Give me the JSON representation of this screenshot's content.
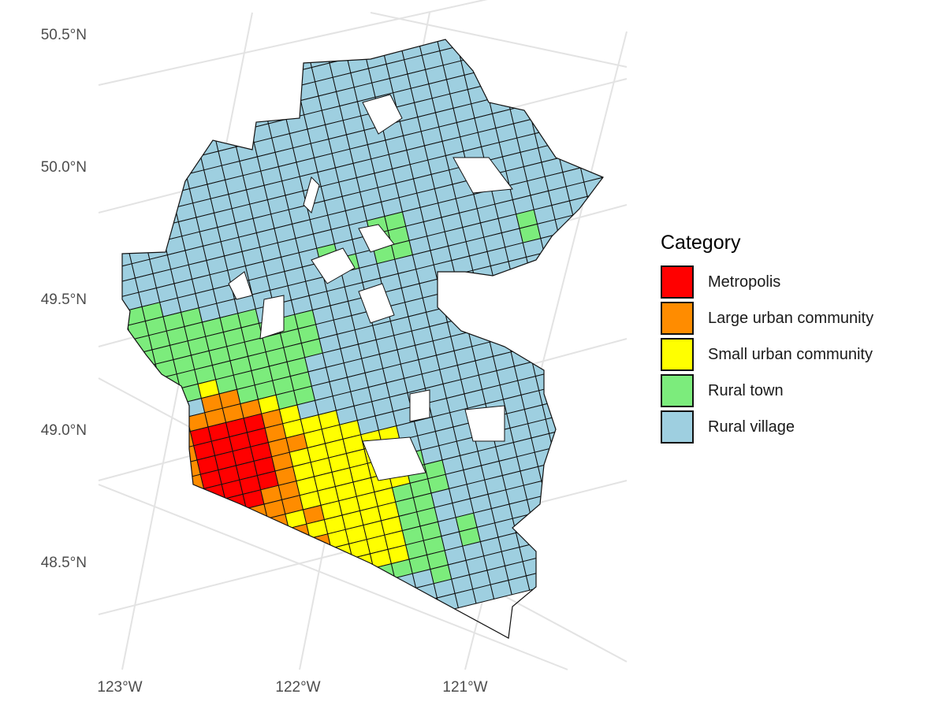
{
  "map": {
    "y_ticks": [
      "50.5°N",
      "50.0°N",
      "49.5°N",
      "49.0°N",
      "48.5°N"
    ],
    "x_ticks": [
      "123°W",
      "122°W",
      "121°W"
    ]
  },
  "legend": {
    "title": "Category",
    "items": [
      {
        "label": "Metropolis",
        "color": "#ff0000"
      },
      {
        "label": "Large urban community",
        "color": "#ff8c00"
      },
      {
        "label": "Small urban community",
        "color": "#ffff00"
      },
      {
        "label": "Rural town",
        "color": "#7cec7c"
      },
      {
        "label": "Rural village",
        "color": "#9ecfe0"
      }
    ]
  }
}
